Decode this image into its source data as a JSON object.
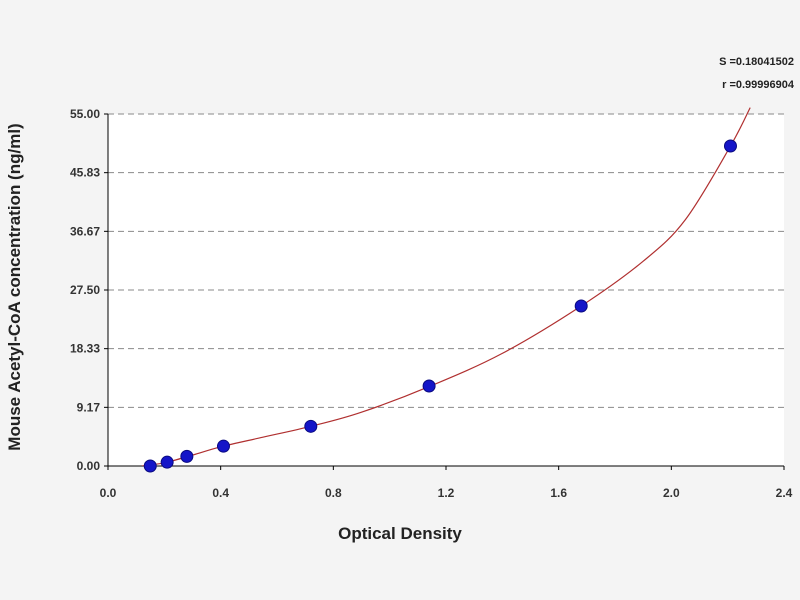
{
  "chart_data": {
    "type": "scatter",
    "title": "",
    "xlabel": "Optical Density",
    "ylabel": "Mouse Acetyl-CoA concentration (ng/ml)",
    "xlim": [
      0.0,
      2.4
    ],
    "ylim": [
      0.0,
      55.0
    ],
    "x_ticks": [
      "0.0",
      "0.4",
      "0.8",
      "1.2",
      "1.6",
      "2.0",
      "2.4"
    ],
    "y_ticks": [
      "0.00",
      "9.17",
      "18.33",
      "27.50",
      "36.67",
      "45.83",
      "55.00"
    ],
    "grid": "horizontal-dashed",
    "series": [
      {
        "points": [
          {
            "x": 0.15,
            "y": 0.0
          },
          {
            "x": 0.21,
            "y": 0.6
          },
          {
            "x": 0.28,
            "y": 1.5
          },
          {
            "x": 0.41,
            "y": 3.1
          },
          {
            "x": 0.72,
            "y": 6.2
          },
          {
            "x": 1.14,
            "y": 12.5
          },
          {
            "x": 1.68,
            "y": 25.0
          },
          {
            "x": 2.21,
            "y": 50.0
          }
        ]
      }
    ],
    "fit_curve": [
      {
        "x": 0.12,
        "y": 0.0
      },
      {
        "x": 0.2,
        "y": 0.5
      },
      {
        "x": 0.3,
        "y": 1.7
      },
      {
        "x": 0.4,
        "y": 3.0
      },
      {
        "x": 0.55,
        "y": 4.5
      },
      {
        "x": 0.72,
        "y": 6.2
      },
      {
        "x": 0.9,
        "y": 8.4
      },
      {
        "x": 1.14,
        "y": 12.4
      },
      {
        "x": 1.4,
        "y": 17.6
      },
      {
        "x": 1.68,
        "y": 25.0
      },
      {
        "x": 1.9,
        "y": 32.0
      },
      {
        "x": 2.05,
        "y": 38.5
      },
      {
        "x": 2.21,
        "y": 50.0
      },
      {
        "x": 2.28,
        "y": 56.0
      }
    ],
    "stats": {
      "s_label": "S =0.18041502",
      "r_label": "r =0.99996904"
    },
    "colors": {
      "point_fill": "#1515c8",
      "point_stroke": "#0a0a80",
      "curve": "#b03030",
      "grid": "#8a8a8a",
      "plot_background": "#ffffff",
      "page_background": "#f4f4f4"
    }
  }
}
